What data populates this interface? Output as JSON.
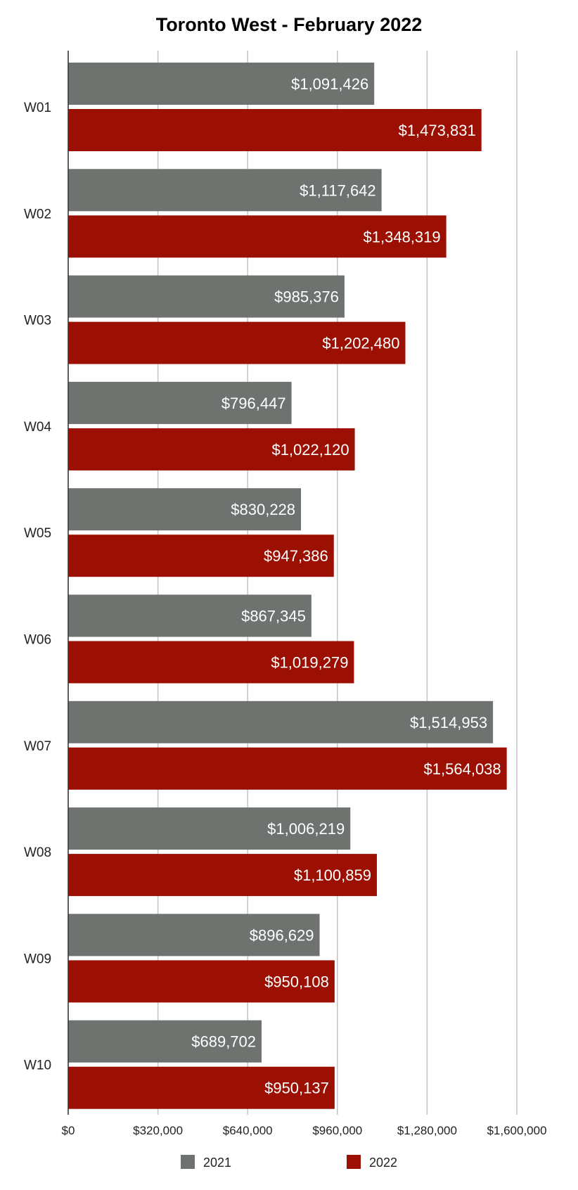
{
  "chart_data": {
    "type": "bar",
    "orientation": "horizontal",
    "title": "Toronto West - February 2022",
    "xlabel": "",
    "ylabel": "",
    "categories": [
      "W01",
      "W02",
      "W03",
      "W04",
      "W05",
      "W06",
      "W07",
      "W08",
      "W09",
      "W10"
    ],
    "series": [
      {
        "name": "2021",
        "color": "#6e736f",
        "values": [
          1091426,
          1117642,
          985376,
          796447,
          830228,
          867345,
          1514953,
          1006219,
          896629,
          689702
        ],
        "labels": [
          "$1,091,426",
          "$1,117,642",
          "$985,376",
          "$796,447",
          "$830,228",
          "$867,345",
          "$1,514,953",
          "$1,006,219",
          "$896,629",
          "$689,702"
        ]
      },
      {
        "name": "2022",
        "color": "#9b1002",
        "values": [
          1473831,
          1348319,
          1202480,
          1022120,
          947386,
          1019279,
          1564038,
          1100859,
          950108,
          950137
        ],
        "labels": [
          "$1,473,831",
          "$1,348,319",
          "$1,202,480",
          "$1,022,120",
          "$947,386",
          "$1,019,279",
          "$1,564,038",
          "$1,100,859",
          "$950,108",
          "$950,137"
        ]
      }
    ],
    "xlim": [
      0,
      1600000
    ],
    "ticks": [
      0,
      320000,
      640000,
      960000,
      1280000,
      1600000
    ],
    "tick_labels": [
      "$0",
      "$320,000",
      "$640,000",
      "$960,000",
      "$1,280,000",
      "$1,600,000"
    ],
    "grid": true,
    "legend_position": "bottom"
  }
}
